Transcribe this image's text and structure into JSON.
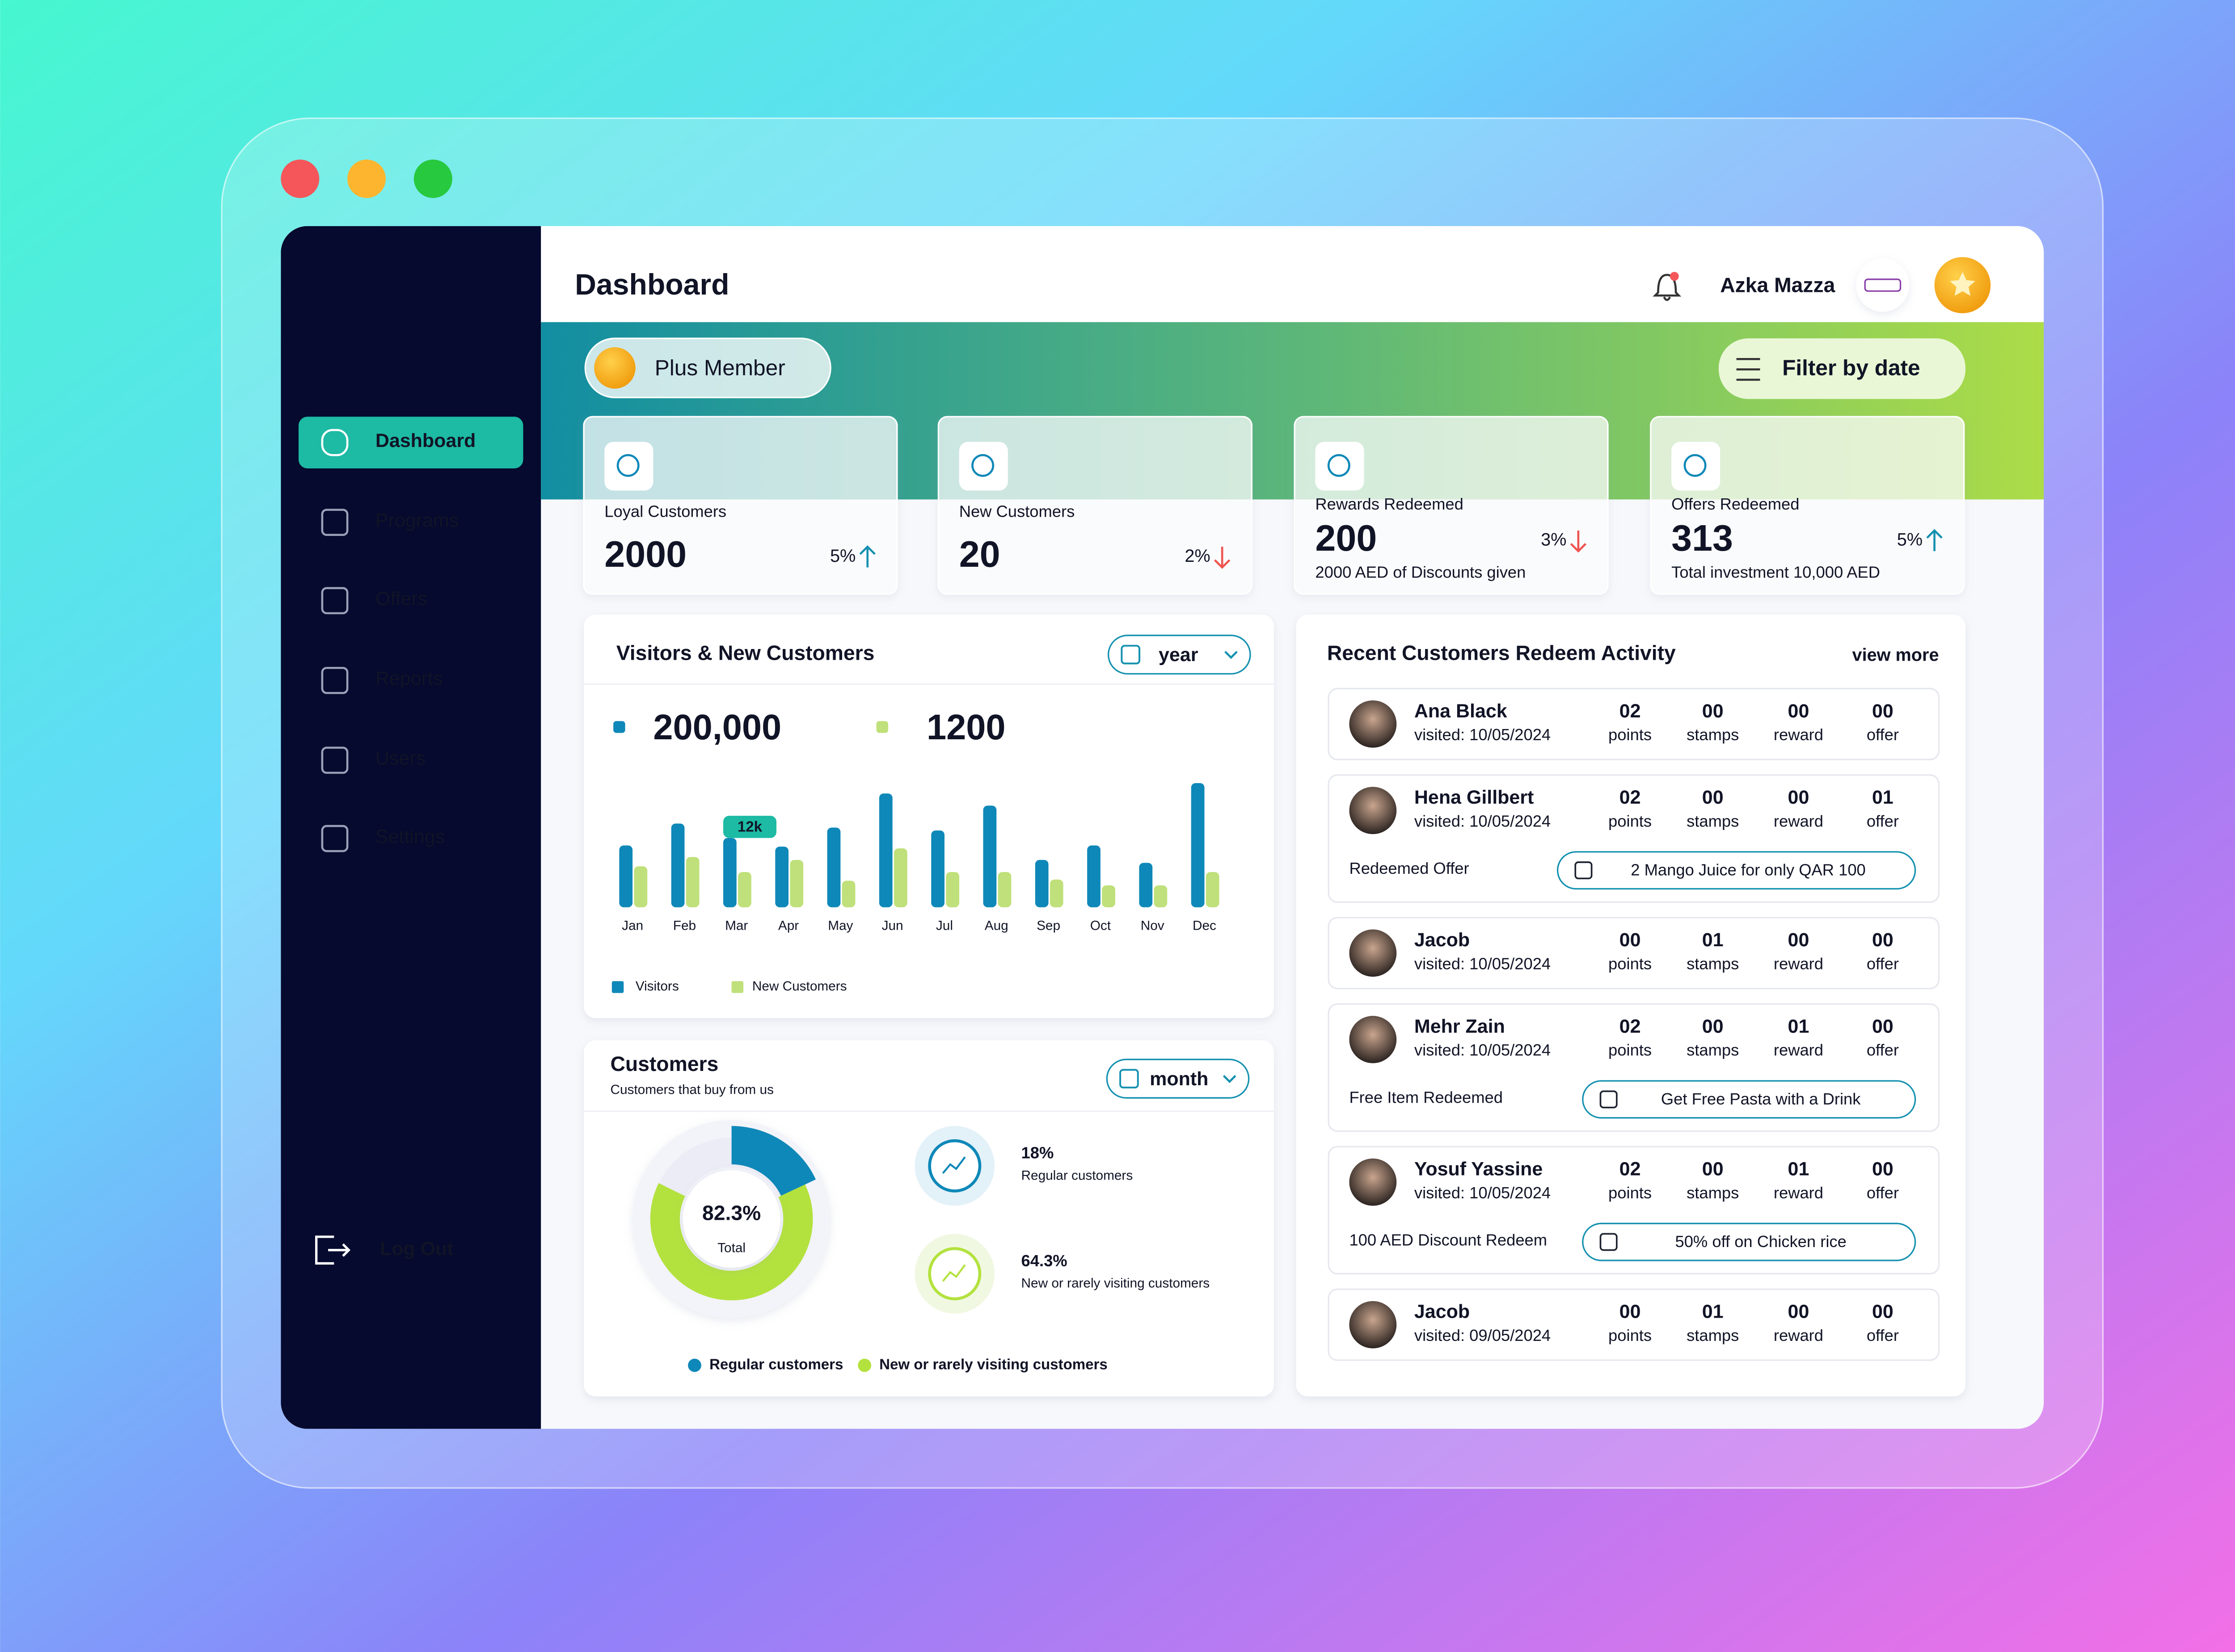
{
  "header": {
    "title": "Dashboard",
    "user": "Azka Mazza"
  },
  "sidebar": {
    "menu": [
      "Dashboard",
      "Programs",
      "Offers",
      "Reports",
      "Users",
      "Settings"
    ],
    "logout": "Log Out"
  },
  "banner": {
    "membership": "Plus Member",
    "filter": "Filter by date"
  },
  "stats": [
    {
      "label": "Loyal Customers",
      "value": 2000,
      "change": "5%",
      "trend": "up"
    },
    {
      "label": "New Customers",
      "value": 20,
      "change": "2%",
      "trend": "down"
    },
    {
      "label": "Rewards Redeemed",
      "value": 200,
      "change": "3%",
      "trend": "down",
      "note": "2000 AED of Discounts given"
    },
    {
      "label": "Offers Redeemed",
      "value": 313,
      "change": "5%",
      "trend": "up",
      "note": "Total investment 10,000 AED"
    }
  ],
  "visitors_chart": {
    "type": "bar",
    "title": "Visitors & New Customers",
    "period": "year",
    "totals": [
      "200,000",
      "1200"
    ],
    "categories": [
      "Jan",
      "Feb",
      "Mar",
      "Apr",
      "May",
      "Jun",
      "Jul",
      "Aug",
      "Sep",
      "Oct",
      "Nov",
      "Dec"
    ],
    "ylim": [
      0,
      22000
    ],
    "series": [
      {
        "name": "Visitors",
        "color": "#0e88b8",
        "values": [
          10700,
          14500,
          12000,
          10500,
          13800,
          19700,
          13300,
          17600,
          8200,
          10700,
          7700,
          21500
        ],
        "value_labels": [
          null,
          null,
          "12k",
          null,
          null,
          null,
          null,
          null,
          null,
          null,
          null,
          null
        ]
      },
      {
        "name": "New Customers",
        "color": "#bfe07a",
        "values": [
          7100,
          8700,
          6100,
          8200,
          4600,
          10200,
          6100,
          6100,
          4800,
          3800,
          3800,
          6100
        ]
      }
    ]
  },
  "customers_chart": {
    "type": "donut",
    "title": "Customers",
    "subtitle": "Customers that buy from us",
    "period": "month",
    "total": "82.3%",
    "total_label": "Total",
    "segments": [
      {
        "name": "Regular customers",
        "value": 18,
        "value_label": "18%",
        "color": "#0e88b8"
      },
      {
        "name": "New or rarely visiting customers",
        "value": 64.3,
        "value_label": "64.3%",
        "color": "#b3e23e"
      }
    ]
  },
  "activity": {
    "title": "Recent Customers Redeem Activity",
    "view_more": "view more",
    "columns": [
      "points",
      "stamps",
      "reward",
      "offer"
    ],
    "rows": [
      {
        "name": "Ana Black",
        "visited": "visited: 10/05/2024",
        "values": [
          "02",
          "00",
          "00",
          "00"
        ]
      },
      {
        "name": "Hena Gillbert",
        "visited": "visited: 10/05/2024",
        "values": [
          "02",
          "00",
          "00",
          "01"
        ],
        "redeem_label": "Redeemed Offer",
        "redeem": "2 Mango Juice for only QAR 100"
      },
      {
        "name": "Jacob",
        "visited": "visited: 10/05/2024",
        "values": [
          "00",
          "01",
          "00",
          "00"
        ]
      },
      {
        "name": "Mehr Zain",
        "visited": "visited: 10/05/2024",
        "values": [
          "02",
          "00",
          "01",
          "00"
        ],
        "redeem_label": "Free Item Redeemed",
        "redeem": "Get Free Pasta with a Drink"
      },
      {
        "name": "Yosuf Yassine",
        "visited": "visited: 10/05/2024",
        "values": [
          "02",
          "00",
          "01",
          "00"
        ],
        "redeem_label": "100 AED Discount Redeem",
        "redeem": "50% off on Chicken rice"
      },
      {
        "name": "Jacob",
        "visited": "visited: 09/05/2024",
        "values": [
          "00",
          "01",
          "00",
          "00"
        ]
      }
    ]
  }
}
